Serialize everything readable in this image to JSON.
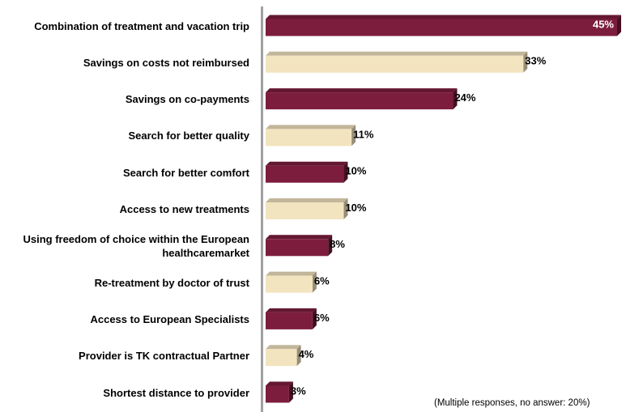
{
  "chart_data": {
    "type": "bar",
    "categories": [
      "Combination of treatment and vacation trip",
      "Savings on costs not reimbursed",
      "Savings on co-payments",
      "Search for better quality",
      "Search for better comfort",
      "Access to new treatments",
      "Using freedom of choice within the European healthcaremarket",
      "Re-treatment by doctor of trust",
      "Access to European Specialists",
      "Provider is TK contractual Partner",
      "Shortest distance to provider"
    ],
    "values": [
      45,
      33,
      24,
      11,
      10,
      10,
      8,
      6,
      6,
      4,
      3
    ],
    "value_labels": [
      "45%",
      "33%",
      "24%",
      "11%",
      "10%",
      "10%",
      "8%",
      "6%",
      "6%",
      "4%",
      "3%"
    ],
    "colors": [
      "#7d1d3d",
      "#f3e4c0",
      "#7d1d3d",
      "#f3e4c0",
      "#7d1d3d",
      "#f3e4c0",
      "#7d1d3d",
      "#f3e4c0",
      "#7d1d3d",
      "#f3e4c0",
      "#7d1d3d"
    ],
    "annotation": "(Multiple responses, no answer: 20%)"
  }
}
